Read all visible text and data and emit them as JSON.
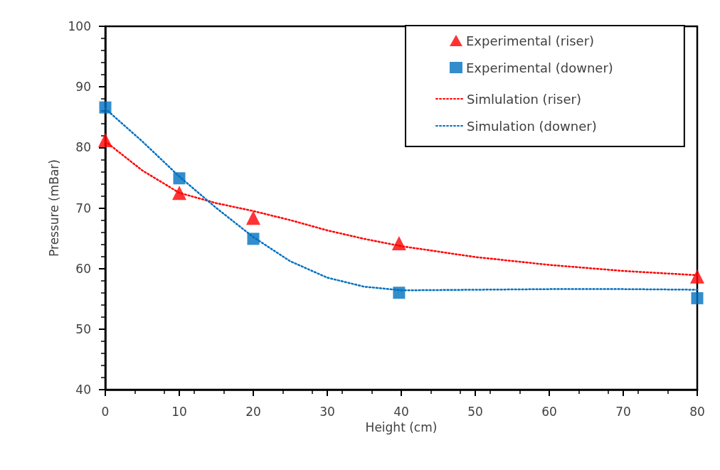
{
  "chart_data": {
    "type": "scatter",
    "xlabel": "Height (cm)",
    "ylabel": "Pressure (mBar)",
    "xlim": [
      0,
      80
    ],
    "xticks": [
      0,
      10,
      20,
      30,
      40,
      50,
      60,
      70,
      80
    ],
    "ylim": [
      40,
      100
    ],
    "yticks": [
      40,
      50,
      60,
      70,
      80,
      90,
      100
    ],
    "grid": false,
    "legend": "top right",
    "series": [
      {
        "name": "Experimental (riser)",
        "marker": "triangle",
        "color": "#ff0000",
        "x": [
          0,
          10,
          20,
          39.7,
          80
        ],
        "values": [
          81.2,
          72.5,
          68.4,
          64.2,
          58.7
        ]
      },
      {
        "name": "Experimental (downer)",
        "marker": "square",
        "color": "#0070c0",
        "x": [
          0,
          10,
          20,
          39.7,
          80
        ],
        "values": [
          86.6,
          74.9,
          64.9,
          56.0,
          55.1
        ]
      },
      {
        "name": "Simlulation (riser)",
        "type": "line",
        "marker": "none",
        "line_style": "dotted",
        "color": "#ff0000",
        "x": [
          0,
          5,
          10,
          15,
          20,
          25,
          30,
          35,
          40,
          50,
          60,
          70,
          80
        ],
        "values": [
          81.0,
          76.2,
          72.5,
          70.8,
          69.5,
          68.0,
          66.3,
          64.9,
          63.7,
          61.9,
          60.6,
          59.6,
          58.9
        ]
      },
      {
        "name": "Simulation (downer)",
        "type": "line",
        "marker": "none",
        "line_style": "dotted",
        "color": "#0070c0",
        "x": [
          0,
          5,
          10,
          15,
          20,
          25,
          30,
          35,
          40,
          50,
          60,
          70,
          80
        ],
        "values": [
          86.4,
          81.0,
          75.2,
          70.0,
          65.2,
          61.2,
          58.5,
          57.0,
          56.4,
          56.5,
          56.6,
          56.6,
          56.5
        ]
      }
    ]
  }
}
